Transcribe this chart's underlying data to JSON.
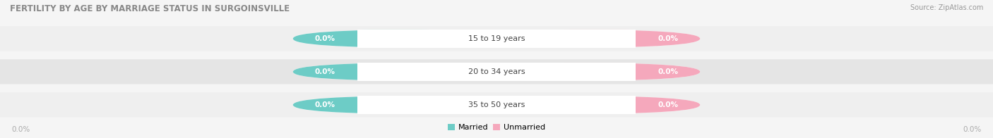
{
  "title": "FERTILITY BY AGE BY MARRIAGE STATUS IN SURGOINSVILLE",
  "source": "Source: ZipAtlas.com",
  "age_groups": [
    "15 to 19 years",
    "20 to 34 years",
    "35 to 50 years"
  ],
  "married_values": [
    "0.0%",
    "0.0%",
    "0.0%"
  ],
  "unmarried_values": [
    "0.0%",
    "0.0%",
    "0.0%"
  ],
  "married_color": "#6DCCC6",
  "unmarried_color": "#F5A8BC",
  "row_bg_light": "#EFEFEF",
  "row_bg_dark": "#E5E5E5",
  "title_fontsize": 8.5,
  "source_fontsize": 7,
  "label_fontsize": 8,
  "value_label_fontsize": 7.5,
  "legend_fontsize": 8,
  "background_color": "#F5F5F5",
  "axis_label_color": "#AAAAAA",
  "title_color": "#888888",
  "center_label_color": "#444444"
}
